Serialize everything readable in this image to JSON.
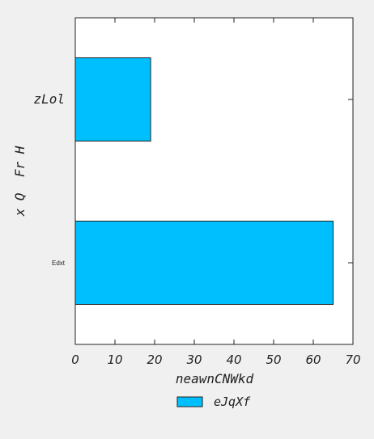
{
  "chart_data": {
    "type": "bar",
    "orientation": "horizontal",
    "categories": [
      "Edxt",
      "zLol"
    ],
    "series": [
      {
        "name": "eJqXf",
        "values": [
          65,
          19
        ],
        "color": "#00bfff"
      }
    ],
    "xlabel": "neawnCNWkd",
    "ylabel": "x Q  Fr H",
    "xlim": [
      0,
      70
    ],
    "xticks": [
      "0",
      "10",
      "20",
      "30",
      "40",
      "50",
      "60",
      "70"
    ],
    "grid": false,
    "legend_position": "bottom-center"
  }
}
